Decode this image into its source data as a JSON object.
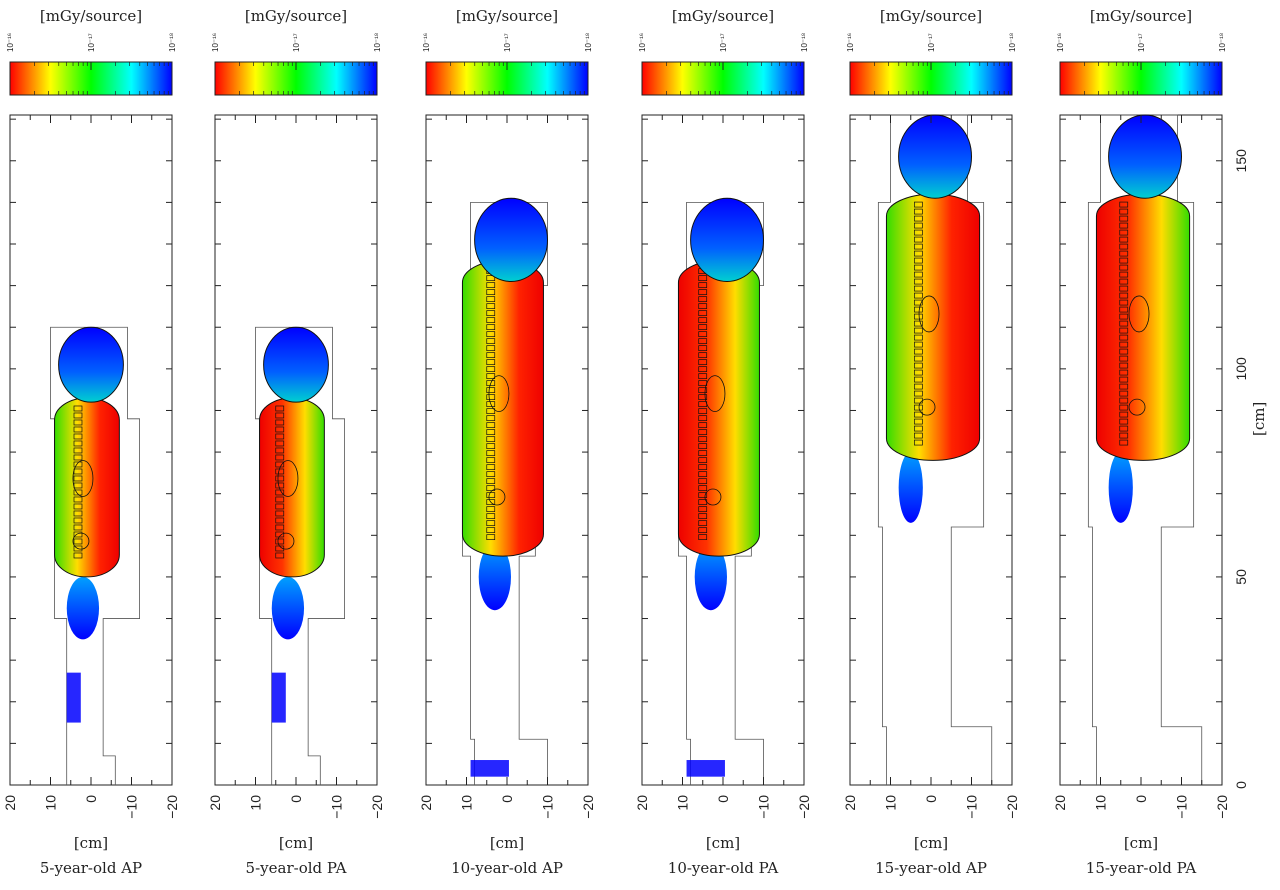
{
  "chart_data": {
    "type": "heatmap",
    "colorbar": {
      "unit_label": "[mGy/source]",
      "scale": "log",
      "tick_labels": [
        "10⁻¹⁶",
        "10⁻¹⁷",
        "10⁻¹⁸"
      ],
      "range": [
        1e-16,
        1e-18
      ],
      "colormap": [
        "#ff0000",
        "#ffff00",
        "#00ff00",
        "#00ffff",
        "#0000ff"
      ]
    },
    "x_axis": {
      "label": "[cm]",
      "ticks": [
        "20",
        "10",
        "0",
        "−10",
        "−20"
      ],
      "range": [
        20,
        -20
      ]
    },
    "y_axis": {
      "label": "[cm]",
      "ticks": [
        "0",
        "50",
        "100",
        "150"
      ],
      "range": [
        0,
        160
      ]
    },
    "panels": [
      {
        "title": "5-year-old AP",
        "age": 5,
        "irradiation": "AP"
      },
      {
        "title": "5-year-old PA",
        "age": 5,
        "irradiation": "PA"
      },
      {
        "title": "10-year-old AP",
        "age": 10,
        "irradiation": "AP"
      },
      {
        "title": "10-year-old PA",
        "age": 10,
        "irradiation": "PA"
      },
      {
        "title": "15-year-old AP",
        "age": 15,
        "irradiation": "AP"
      },
      {
        "title": "15-year-old PA",
        "age": 15,
        "irradiation": "PA"
      }
    ]
  }
}
